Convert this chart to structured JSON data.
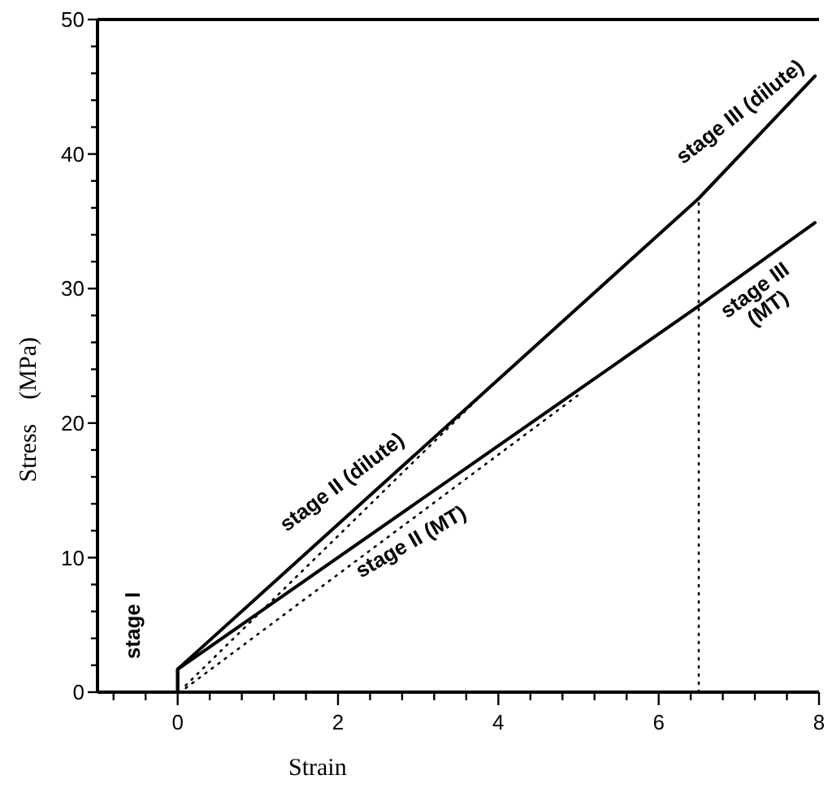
{
  "chart_data": {
    "type": "line",
    "xlabel": "Strain",
    "ylabel": "Stress    (MPa)",
    "xlim": [
      -1,
      8
    ],
    "ylim": [
      0,
      50
    ],
    "xticks": [
      {
        "value": -0.8,
        "label": null
      },
      {
        "value": -0.4,
        "label": null
      },
      0,
      {
        "value": 0.4,
        "label": null
      },
      {
        "value": 0.8,
        "label": null
      },
      {
        "value": 1.2,
        "label": null
      },
      {
        "value": 1.6,
        "label": null
      },
      2,
      {
        "value": 2.4,
        "label": null
      },
      {
        "value": 2.8,
        "label": null
      },
      {
        "value": 3.2,
        "label": null
      },
      {
        "value": 3.6,
        "label": null
      },
      4,
      {
        "value": 4.4,
        "label": null
      },
      {
        "value": 4.8,
        "label": null
      },
      {
        "value": 5.2,
        "label": null
      },
      {
        "value": 5.6,
        "label": null
      },
      6,
      {
        "value": 6.4,
        "label": null
      },
      {
        "value": 6.8,
        "label": null
      },
      {
        "value": 7.2,
        "label": null
      },
      {
        "value": 7.6,
        "label": null
      },
      8
    ],
    "yticks": [
      0,
      {
        "value": 2,
        "label": null
      },
      {
        "value": 4,
        "label": null
      },
      {
        "value": 6,
        "label": null
      },
      {
        "value": 8,
        "label": null
      },
      10,
      {
        "value": 12,
        "label": null
      },
      {
        "value": 14,
        "label": null
      },
      {
        "value": 16,
        "label": null
      },
      {
        "value": 18,
        "label": null
      },
      20,
      {
        "value": 22,
        "label": null
      },
      {
        "value": 24,
        "label": null
      },
      {
        "value": 26,
        "label": null
      },
      {
        "value": 28,
        "label": null
      },
      30,
      {
        "value": 32,
        "label": null
      },
      {
        "value": 34,
        "label": null
      },
      {
        "value": 36,
        "label": null
      },
      {
        "value": 38,
        "label": null
      },
      40,
      {
        "value": 42,
        "label": null
      },
      {
        "value": 44,
        "label": null
      },
      {
        "value": 46,
        "label": null
      },
      {
        "value": 48,
        "label": null
      },
      50
    ],
    "grid": false,
    "series": [
      {
        "color": "#000000",
        "x": [
          0,
          0,
          6.5,
          7.95
        ],
        "values": [
          0,
          1.7,
          36.7,
          45.8
        ],
        "line_style": "solid"
      },
      {
        "color": "#000000",
        "x": [
          0,
          0,
          6.5,
          7.95
        ],
        "values": [
          0,
          1.7,
          28.7,
          34.9
        ],
        "line_style": "solid"
      },
      {
        "color": "#000000",
        "x": [
          0.1,
          4
        ],
        "values": [
          0.5,
          23.3
        ],
        "line_style": "dotted"
      },
      {
        "color": "#000000",
        "x": [
          0.1,
          5
        ],
        "values": [
          0.3,
          22.1
        ],
        "line_style": "dotted"
      },
      {
        "color": "#000000",
        "x": [
          6.5,
          6.5
        ],
        "values": [
          0,
          36.7
        ],
        "line_style": "dotted"
      }
    ],
    "annotations": [
      "stage I",
      "stage II (dilute)",
      "stage II (MT)",
      "stage III (dilute)",
      "stage III (MT)"
    ]
  }
}
